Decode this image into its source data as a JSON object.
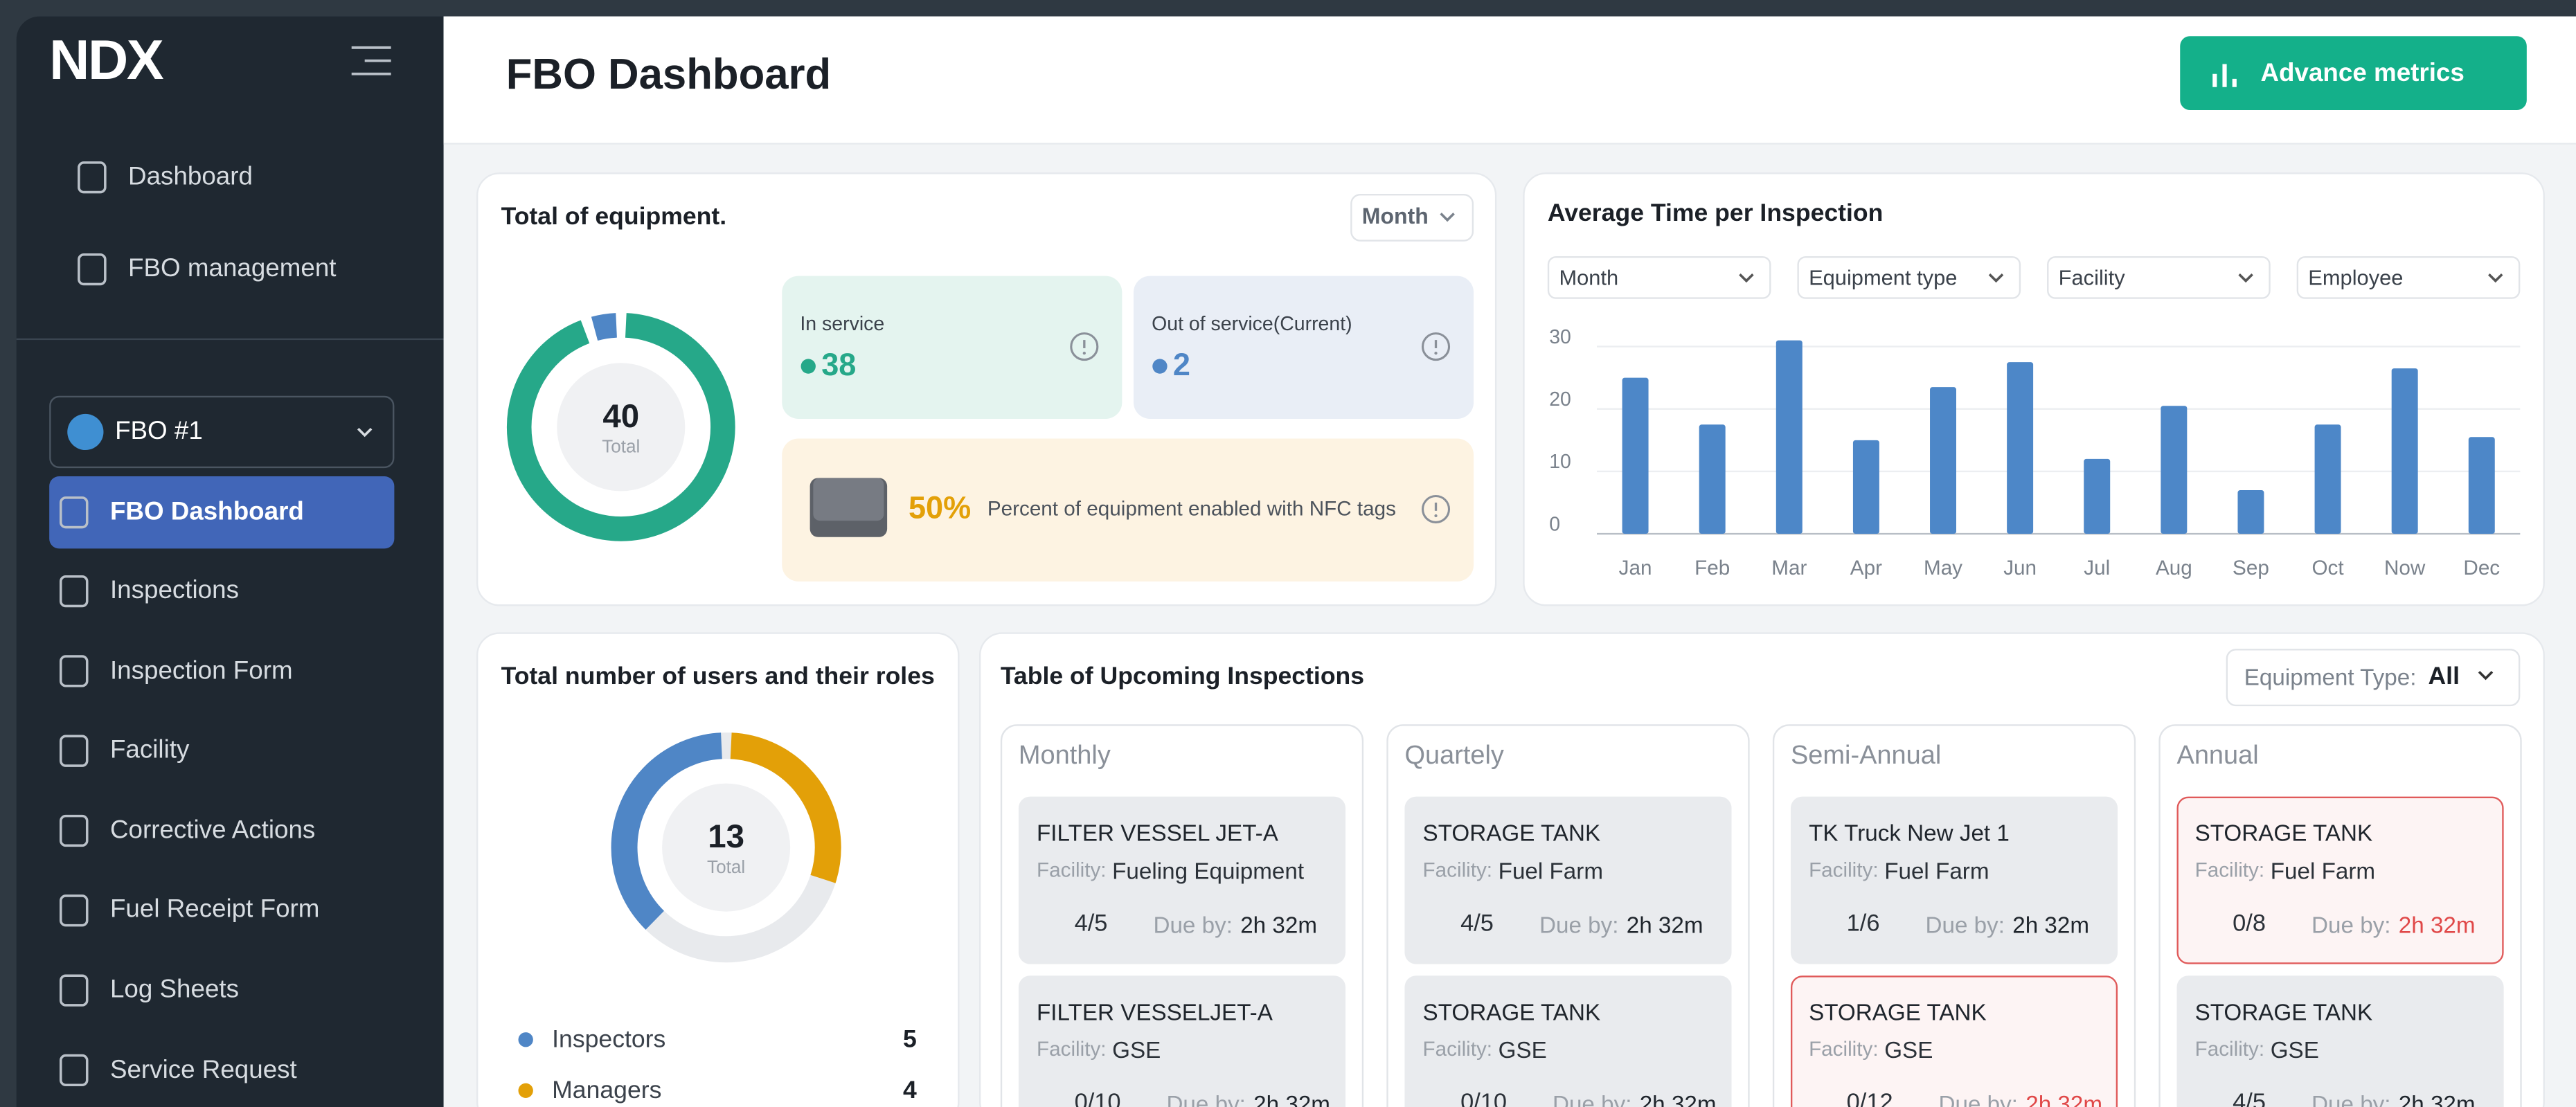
{
  "sidebar": {
    "logo": "NDX",
    "nav_top": [
      "Dashboard",
      "FBO management"
    ],
    "fbo_select": "FBO #1",
    "nav": [
      "FBO Dashboard",
      "Inspections",
      "Inspection Form",
      "Facility",
      "Corrective Actions",
      "Fuel Receipt Form",
      "Log Sheets",
      "Service Request"
    ]
  },
  "header": {
    "title": "FBO Dashboard",
    "button": "Advance metrics"
  },
  "equipment": {
    "title": "Total of equipment.",
    "period": "Month",
    "total": 40,
    "total_label": "Total",
    "in_service": {
      "label": "In service",
      "value": 38,
      "color": "#26a889"
    },
    "out_of_service": {
      "label": "Out of service(Current)",
      "value": 2,
      "color": "#4f86c6"
    },
    "nfc": {
      "percent": "50%",
      "text": "Percent of equipment enabled with NFC tags"
    }
  },
  "inspection_time": {
    "type": "bar",
    "title": "Average Time per Inspection",
    "filters": [
      "Month",
      "Equipment type",
      "Facility",
      "Employee"
    ],
    "categories": [
      "Jan",
      "Feb",
      "Mar",
      "Apr",
      "May",
      "Jun",
      "Jul",
      "Aug",
      "Sep",
      "Oct",
      "Now",
      "Dec"
    ],
    "values": [
      25,
      17.5,
      31,
      15,
      23.5,
      27.5,
      12,
      20.5,
      7,
      17.5,
      26.5,
      15.5
    ],
    "color": "#4d87c8",
    "ylim": [
      0,
      32
    ],
    "yticks": [
      0,
      10,
      20,
      30
    ],
    "grid": true
  },
  "users": {
    "title": "Total number of users and their roles",
    "total": 13,
    "total_label": "Total",
    "roles": [
      {
        "name": "Inspectors",
        "value": 5,
        "color": "#4f86c6"
      },
      {
        "name": "Managers",
        "value": 4,
        "color": "#e3a008"
      }
    ]
  },
  "upcoming": {
    "title": "Table of Upcoming Inspections",
    "filter_label": "Equipment Type:",
    "filter_value": "All",
    "facility_label": "Facility:",
    "due_label": "Due by:",
    "columns": [
      {
        "name": "Monthly",
        "items": [
          {
            "title": "FILTER VESSEL JET-A",
            "facility": "Fueling Equipment",
            "progress": "4/5",
            "due": "2h 32m",
            "alert": false
          },
          {
            "title": "FILTER VESSELJET-A",
            "facility": "GSE",
            "progress": "0/10",
            "due": "2h 32m",
            "alert": false
          }
        ]
      },
      {
        "name": "Quartely",
        "items": [
          {
            "title": "STORAGE TANK",
            "facility": "Fuel Farm",
            "progress": "4/5",
            "due": "2h 32m",
            "alert": false
          },
          {
            "title": "STORAGE TANK",
            "facility": "GSE",
            "progress": "0/10",
            "due": "2h 32m",
            "alert": false
          }
        ]
      },
      {
        "name": "Semi-Annual",
        "items": [
          {
            "title": "TK Truck New Jet 1",
            "facility": "Fuel Farm",
            "progress": "1/6",
            "due": "2h 32m",
            "alert": false
          },
          {
            "title": "STORAGE TANK",
            "facility": "GSE",
            "progress": "0/12",
            "due": "2h 32m",
            "alert": true
          }
        ]
      },
      {
        "name": "Annual",
        "items": [
          {
            "title": "STORAGE TANK",
            "facility": "Fuel Farm",
            "progress": "0/8",
            "due": "2h 32m",
            "alert": true
          },
          {
            "title": "STORAGE TANK",
            "facility": "GSE",
            "progress": "4/5",
            "due": "2h 32m",
            "alert": false
          }
        ]
      }
    ]
  }
}
